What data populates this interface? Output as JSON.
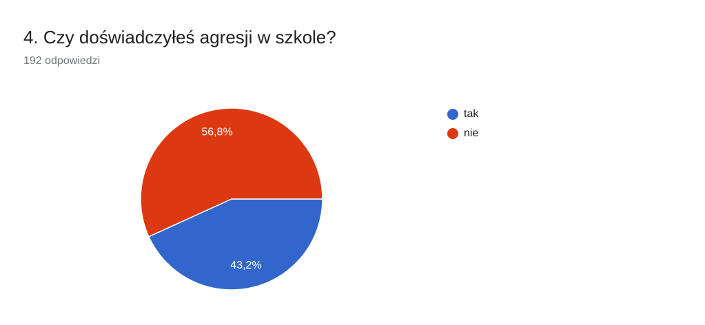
{
  "chart_data": {
    "type": "pie",
    "title": "4. Czy doświadczyłeś agresji w szkole?",
    "subtitle": "192 odpowiedzi",
    "categories": [
      "tak",
      "nie"
    ],
    "values": [
      43.2,
      56.8
    ],
    "value_labels": [
      "43,2%",
      "56,8%"
    ],
    "colors": [
      "#3366cc",
      "#dc3912"
    ],
    "legend": "right"
  }
}
